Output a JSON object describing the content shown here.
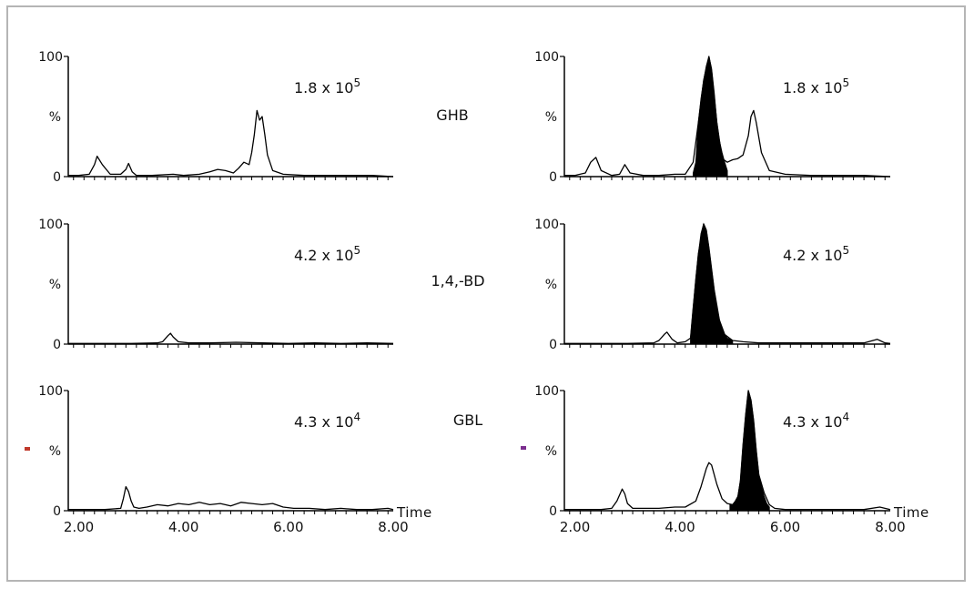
{
  "chart_data": [
    {
      "type": "line",
      "panel": "left-1",
      "annotation": {
        "mantissa": "1.8 x 10",
        "exponent": "5"
      },
      "xlim": [
        1.8,
        8.0
      ],
      "ylim": [
        0,
        100
      ],
      "ytick_top": "100",
      "ytick_mid": "%",
      "ytick_bottom": "0",
      "x": [
        1.8,
        2.0,
        2.2,
        2.3,
        2.35,
        2.45,
        2.6,
        2.8,
        2.9,
        2.95,
        3.02,
        3.1,
        3.4,
        3.8,
        4.0,
        4.3,
        4.5,
        4.65,
        4.8,
        4.95,
        5.05,
        5.15,
        5.25,
        5.3,
        5.35,
        5.4,
        5.45,
        5.5,
        5.55,
        5.6,
        5.7,
        5.9,
        6.3,
        7.0,
        7.6,
        8.0
      ],
      "y": [
        1,
        1,
        2,
        10,
        17,
        10,
        2,
        2,
        6,
        11,
        4,
        1,
        1,
        2,
        1,
        2,
        4,
        6,
        5,
        3,
        7,
        12,
        10,
        20,
        35,
        55,
        47,
        50,
        35,
        18,
        5,
        2,
        1,
        1,
        1,
        0
      ],
      "filled_peak": null
    },
    {
      "type": "line",
      "panel": "right-1",
      "annotation": {
        "mantissa": "1.8 x 10",
        "exponent": "5"
      },
      "xlim": [
        1.8,
        8.0
      ],
      "ylim": [
        0,
        100
      ],
      "ytick_top": "100",
      "ytick_mid": "%",
      "ytick_bottom": "0",
      "x": [
        1.8,
        2.0,
        2.2,
        2.3,
        2.4,
        2.5,
        2.7,
        2.85,
        2.95,
        3.05,
        3.3,
        3.6,
        3.9,
        4.1,
        4.25,
        4.35,
        4.45,
        4.55,
        4.6,
        4.7,
        4.8,
        4.9,
        5.0,
        5.1,
        5.2,
        5.3,
        5.35,
        5.4,
        5.45,
        5.55,
        5.7,
        6.0,
        6.5,
        7.5,
        8.0
      ],
      "y": [
        1,
        1,
        3,
        12,
        16,
        5,
        1,
        2,
        10,
        3,
        1,
        1,
        2,
        2,
        12,
        45,
        80,
        100,
        88,
        45,
        15,
        12,
        14,
        15,
        18,
        34,
        50,
        55,
        45,
        20,
        5,
        2,
        1,
        1,
        0
      ],
      "filled_peak": {
        "x": [
          4.25,
          4.3,
          4.35,
          4.4,
          4.45,
          4.5,
          4.55,
          4.6,
          4.65,
          4.7,
          4.75,
          4.8,
          4.85,
          4.9
        ],
        "y": [
          3,
          12,
          45,
          65,
          80,
          92,
          100,
          90,
          70,
          45,
          30,
          20,
          12,
          5
        ]
      }
    },
    {
      "type": "line",
      "panel": "left-2",
      "compound": "1,4,-BD",
      "annotation": {
        "mantissa": "4.2 x 10",
        "exponent": "5"
      },
      "xlim": [
        1.8,
        8.0
      ],
      "ylim": [
        0,
        100
      ],
      "ytick_top": "100",
      "ytick_mid": "%",
      "ytick_bottom": "0",
      "x": [
        1.8,
        2.5,
        3.0,
        3.5,
        3.6,
        3.7,
        3.75,
        3.8,
        3.9,
        4.1,
        4.5,
        5.0,
        5.5,
        6.0,
        6.5,
        7.0,
        7.5,
        8.0
      ],
      "y": [
        0.5,
        0.5,
        0.5,
        1,
        2,
        7,
        9,
        6,
        2,
        1,
        1,
        1.5,
        1,
        0.5,
        1,
        0.5,
        1,
        0.5
      ],
      "filled_peak": null
    },
    {
      "type": "line",
      "panel": "right-2",
      "annotation": {
        "mantissa": "4.2 x 10",
        "exponent": "5"
      },
      "xlim": [
        1.8,
        8.0
      ],
      "ylim": [
        0,
        100
      ],
      "ytick_top": "100",
      "ytick_mid": "%",
      "ytick_bottom": "0",
      "x": [
        1.8,
        2.5,
        3.0,
        3.5,
        3.6,
        3.7,
        3.75,
        3.85,
        3.95,
        4.1,
        4.2,
        4.25,
        4.35,
        4.45,
        4.5,
        4.55,
        4.65,
        4.75,
        4.85,
        5.0,
        5.2,
        5.5,
        6.0,
        6.5,
        7.0,
        7.5,
        7.75,
        7.8,
        7.9,
        8.0
      ],
      "y": [
        0.5,
        0.5,
        0.5,
        1,
        3,
        8,
        10,
        4,
        1,
        2,
        5,
        30,
        75,
        100,
        95,
        80,
        45,
        20,
        8,
        3,
        2,
        1,
        1,
        1,
        1,
        1,
        4,
        3,
        1,
        0.5
      ],
      "filled_peak": {
        "x": [
          4.2,
          4.25,
          4.3,
          4.35,
          4.4,
          4.45,
          4.5,
          4.55,
          4.6,
          4.65,
          4.7,
          4.75,
          4.8,
          4.85,
          4.9,
          5.0
        ],
        "y": [
          5,
          30,
          55,
          75,
          92,
          100,
          95,
          80,
          62,
          45,
          30,
          20,
          12,
          8,
          5,
          3
        ]
      }
    },
    {
      "type": "line",
      "panel": "left-3",
      "compound": "GBL",
      "annotation": {
        "mantissa": "4.3 x 10",
        "exponent": "4"
      },
      "xlim": [
        1.8,
        8.0
      ],
      "ylim": [
        0,
        100
      ],
      "ytick_top": "100",
      "ytick_mid": "%",
      "ytick_bottom": "0",
      "x": [
        1.8,
        2.2,
        2.5,
        2.8,
        2.85,
        2.9,
        2.95,
        3.0,
        3.05,
        3.15,
        3.3,
        3.5,
        3.7,
        3.9,
        4.1,
        4.3,
        4.5,
        4.7,
        4.9,
        5.1,
        5.3,
        5.5,
        5.7,
        5.9,
        6.1,
        6.4,
        6.7,
        7.0,
        7.3,
        7.6,
        7.9,
        8.0
      ],
      "y": [
        1,
        1,
        1,
        2,
        10,
        20,
        16,
        8,
        3,
        2,
        3,
        5,
        4,
        6,
        5,
        7,
        5,
        6,
        4,
        7,
        6,
        5,
        6,
        3,
        2,
        2,
        1,
        2,
        1,
        1,
        2,
        1
      ],
      "filled_peak": null
    },
    {
      "type": "line",
      "panel": "right-3",
      "annotation": {
        "mantissa": "4.3 x 10",
        "exponent": "4"
      },
      "xlim": [
        1.8,
        8.0
      ],
      "ylim": [
        0,
        100
      ],
      "ytick_top": "100",
      "ytick_mid": "%",
      "ytick_bottom": "0",
      "x": [
        1.8,
        2.2,
        2.5,
        2.7,
        2.8,
        2.9,
        2.95,
        3.0,
        3.1,
        3.3,
        3.6,
        3.9,
        4.1,
        4.3,
        4.4,
        4.5,
        4.55,
        4.6,
        4.7,
        4.8,
        4.9,
        5.0,
        5.1,
        5.15,
        5.2,
        5.25,
        5.3,
        5.35,
        5.4,
        5.45,
        5.5,
        5.6,
        5.7,
        5.8,
        6.0,
        6.5,
        7.0,
        7.5,
        7.8,
        7.9,
        8.0
      ],
      "y": [
        1,
        1,
        1,
        2,
        8,
        18,
        14,
        6,
        2,
        2,
        2,
        3,
        3,
        8,
        20,
        35,
        40,
        38,
        22,
        10,
        6,
        5,
        10,
        25,
        55,
        80,
        100,
        92,
        75,
        50,
        30,
        15,
        5,
        2,
        1,
        1,
        1,
        1,
        3,
        2,
        1
      ],
      "filled_peak": {
        "x": [
          4.95,
          5.0,
          5.05,
          5.1,
          5.15,
          5.2,
          5.25,
          5.3,
          5.35,
          5.4,
          5.45,
          5.5,
          5.55,
          5.6,
          5.65,
          5.7
        ],
        "y": [
          5,
          5,
          8,
          12,
          25,
          55,
          80,
          100,
          92,
          75,
          50,
          30,
          20,
          12,
          6,
          3
        ]
      }
    }
  ],
  "compound_labels": {
    "top": "GHB",
    "middle": "1,4,-BD",
    "bottom": "GBL"
  },
  "x_axis": {
    "ticks": [
      2.0,
      4.0,
      6.0,
      8.0
    ],
    "tick_labels": [
      "2.00",
      "4.00",
      "6.00",
      "8.00"
    ],
    "label": "Time"
  },
  "colors": {
    "line": "#000000",
    "filled_peak": "#000000",
    "marker_left": "#c0392b",
    "marker_right": "#7b2d8e",
    "frame": "#b5b5b5"
  }
}
